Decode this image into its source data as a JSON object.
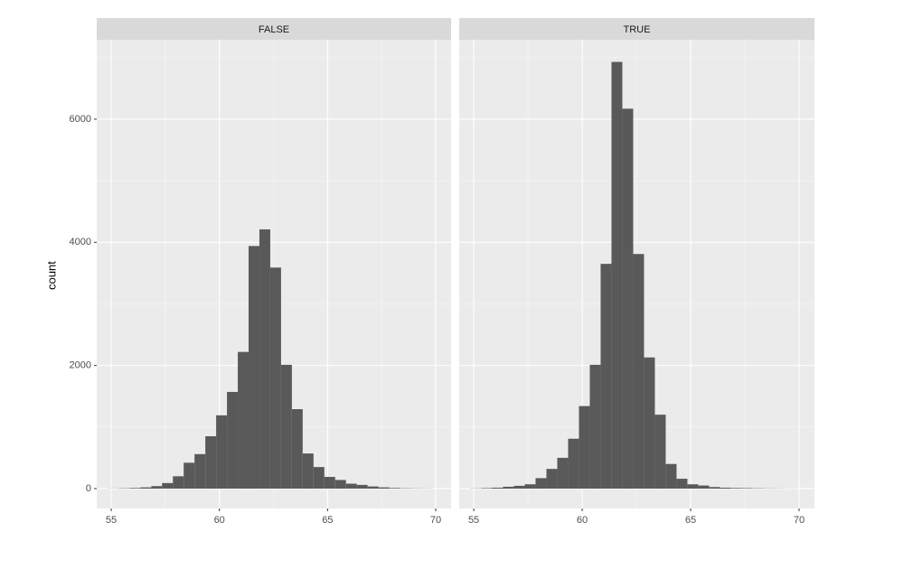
{
  "chart_data": [
    {
      "type": "histogram",
      "title": "FALSE",
      "ylabel": "count",
      "color": "#595959",
      "bins": [
        54.85,
        55.35,
        55.85,
        56.35,
        56.85,
        57.35,
        57.85,
        58.35,
        58.85,
        59.35,
        59.85,
        60.35,
        60.85,
        61.35,
        61.85,
        62.35,
        62.85,
        63.35,
        63.85,
        64.35,
        64.85,
        65.35,
        65.85,
        66.35,
        66.85,
        67.35,
        67.85,
        68.35,
        68.85,
        69.35,
        69.85
      ],
      "values": [
        2,
        5,
        10,
        20,
        40,
        90,
        200,
        420,
        560,
        850,
        1190,
        1570,
        2220,
        3940,
        4210,
        3590,
        2010,
        1290,
        570,
        350,
        190,
        140,
        80,
        60,
        35,
        20,
        10,
        5,
        3,
        2
      ],
      "xlim": [
        54.33,
        70.71
      ],
      "xticks": [
        55,
        60,
        65,
        70
      ],
      "ylim": [
        -323,
        7290
      ],
      "yticks": [
        0,
        2000,
        4000,
        6000
      ],
      "grid": true
    },
    {
      "type": "histogram",
      "title": "TRUE",
      "color": "#595959",
      "bins": [
        54.85,
        55.35,
        55.85,
        56.35,
        56.85,
        57.35,
        57.85,
        58.35,
        58.85,
        59.35,
        59.85,
        60.35,
        60.85,
        61.35,
        61.85,
        62.35,
        62.85,
        63.35,
        63.85,
        64.35,
        64.85,
        65.35,
        65.85,
        66.35,
        66.85,
        67.35,
        67.85,
        68.35,
        68.85,
        69.35,
        69.85
      ],
      "values": [
        3,
        8,
        15,
        30,
        45,
        70,
        170,
        320,
        500,
        810,
        1340,
        2010,
        3650,
        6930,
        6170,
        3810,
        2130,
        1200,
        400,
        160,
        70,
        50,
        25,
        15,
        10,
        8,
        5,
        3,
        2,
        1
      ],
      "xlim": [
        54.33,
        70.71
      ],
      "xticks": [
        55,
        60,
        65,
        70
      ],
      "ylim": [
        -323,
        7290
      ],
      "yticks": [
        0,
        2000,
        4000,
        6000
      ],
      "grid": true
    }
  ]
}
